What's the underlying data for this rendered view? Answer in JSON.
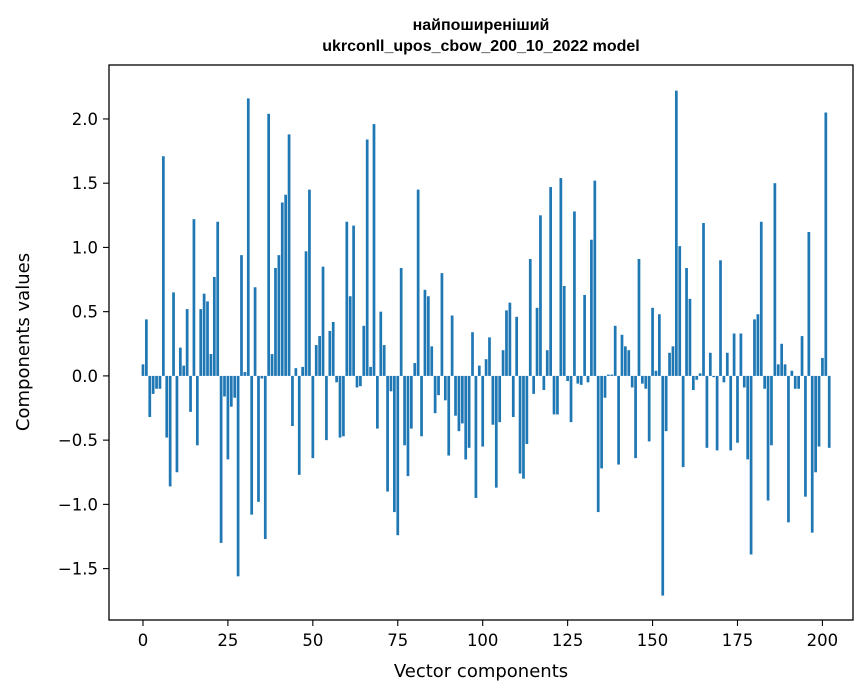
{
  "chart_data": {
    "type": "bar",
    "title": [
      "найпоширеніший",
      "ukrconll_upos_cbow_200_10_2022 model"
    ],
    "xlabel": "Vector components",
    "ylabel": "Components values",
    "xlim": [
      -10,
      209
    ],
    "ylim": [
      -1.9,
      2.42
    ],
    "xticks": [
      0,
      25,
      50,
      75,
      100,
      125,
      150,
      175,
      200
    ],
    "yticks": [
      -1.5,
      -1.0,
      -0.5,
      0.0,
      0.5,
      1.0,
      1.5,
      2.0
    ],
    "ytick_labels": [
      "−1.5",
      "−1.0",
      "−0.5",
      "0.0",
      "0.5",
      "1.0",
      "1.5",
      "2.0"
    ],
    "bar_color": "#1f77b4",
    "values": [
      0.09,
      0.44,
      -0.32,
      -0.14,
      -0.1,
      -0.1,
      1.71,
      -0.48,
      -0.86,
      0.65,
      -0.75,
      0.22,
      0.08,
      0.52,
      -0.28,
      1.22,
      -0.54,
      0.52,
      0.64,
      0.58,
      0.17,
      0.77,
      1.2,
      -1.3,
      -0.16,
      -0.65,
      -0.24,
      -0.17,
      -1.56,
      0.94,
      0.03,
      2.16,
      -1.08,
      0.69,
      -0.98,
      -0.02,
      -1.27,
      2.04,
      0.17,
      0.84,
      0.94,
      1.35,
      1.41,
      1.88,
      -0.39,
      0.06,
      -0.77,
      0.07,
      0.97,
      1.45,
      -0.64,
      0.24,
      0.31,
      0.85,
      -0.5,
      0.35,
      0.42,
      -0.05,
      -0.48,
      -0.47,
      1.2,
      0.62,
      1.17,
      -0.09,
      -0.08,
      0.39,
      1.84,
      0.07,
      1.96,
      -0.41,
      0.5,
      0.24,
      -0.9,
      -0.12,
      -1.06,
      -1.24,
      0.84,
      -0.54,
      -0.78,
      -0.41,
      0.1,
      1.45,
      -0.47,
      0.67,
      0.62,
      0.23,
      -0.29,
      -0.15,
      0.8,
      -0.19,
      -0.62,
      0.47,
      -0.31,
      -0.43,
      -0.37,
      -0.65,
      -0.56,
      0.34,
      -0.95,
      0.08,
      -0.55,
      0.13,
      0.3,
      -0.38,
      -0.87,
      -0.36,
      0.2,
      0.51,
      0.57,
      -0.32,
      0.46,
      -0.76,
      -0.8,
      -0.53,
      0.91,
      -0.14,
      0.53,
      1.25,
      -0.11,
      0.2,
      1.47,
      -0.3,
      -0.3,
      1.54,
      0.7,
      -0.04,
      -0.36,
      1.28,
      -0.06,
      -0.07,
      0.63,
      -0.05,
      1.06,
      1.52,
      -1.06,
      -0.72,
      -0.17,
      0.01,
      0.01,
      0.39,
      -0.69,
      0.32,
      0.23,
      0.2,
      -0.09,
      -0.64,
      0.91,
      -0.06,
      -0.1,
      -0.51,
      0.53,
      0.04,
      0.48,
      -1.71,
      -0.43,
      0.18,
      0.23,
      2.22,
      1.01,
      -0.71,
      0.84,
      0.6,
      -0.11,
      -0.03,
      0.02,
      1.19,
      -0.56,
      0.18,
      -0.01,
      -0.58,
      0.9,
      -0.05,
      0.18,
      -0.58,
      0.33,
      -0.52,
      0.33,
      -0.09,
      -0.65,
      -1.39,
      0.44,
      0.48,
      1.2,
      -0.1,
      -0.97,
      -0.54,
      1.5,
      0.09,
      0.25,
      0.09,
      -1.14,
      0.04,
      -0.1,
      -0.1,
      0.31,
      -0.94,
      1.12,
      -1.22,
      -0.75,
      -0.55,
      0.14,
      2.05,
      -0.56
    ]
  }
}
